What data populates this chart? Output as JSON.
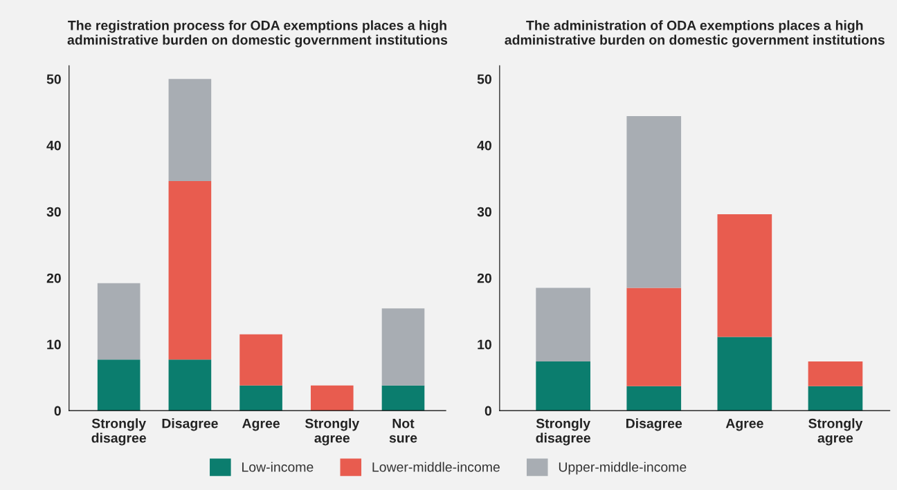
{
  "chart_data": [
    {
      "type": "bar",
      "stacked": true,
      "title": "The registration process for ODA exemptions places a high\nadministrative burden on domestic government institutions",
      "categories": [
        "Strongly\ndisagree",
        "Disagree",
        "Agree",
        "Strongly\nagree",
        "Not\nsure"
      ],
      "series": [
        {
          "name": "Low-income",
          "color": "#0b7d6e",
          "values": [
            7.7,
            7.7,
            3.8,
            0,
            3.8
          ]
        },
        {
          "name": "Lower-middle-income",
          "color": "#e85c4f",
          "values": [
            0,
            26.9,
            7.7,
            3.8,
            0
          ]
        },
        {
          "name": "Upper-middle-income",
          "color": "#a8adb3",
          "values": [
            11.5,
            15.4,
            0,
            0,
            11.6
          ]
        }
      ],
      "ylim": [
        0,
        52
      ],
      "yticks": [
        0,
        10,
        20,
        30,
        40,
        50
      ],
      "grid": false,
      "legend": "bottom"
    },
    {
      "type": "bar",
      "stacked": true,
      "title": "The administration of ODA exemptions places a high\nadministrative burden on domestic government institutions",
      "categories": [
        "Strongly\ndisagree",
        "Disagree",
        "Agree",
        "Strongly\nagree"
      ],
      "series": [
        {
          "color": "#0b7d6e",
          "values": [
            7.4,
            3.7,
            11.1,
            3.7
          ]
        },
        {
          "color": "#e85c4f",
          "values": [
            0,
            14.8,
            18.5,
            3.7
          ]
        },
        {
          "color": "#a8adb3",
          "values": [
            11.1,
            25.9,
            0,
            0
          ]
        }
      ],
      "ylim": [
        0,
        52
      ],
      "yticks": [
        0,
        10,
        20,
        30,
        40,
        50
      ],
      "grid": false,
      "legend": false
    }
  ]
}
